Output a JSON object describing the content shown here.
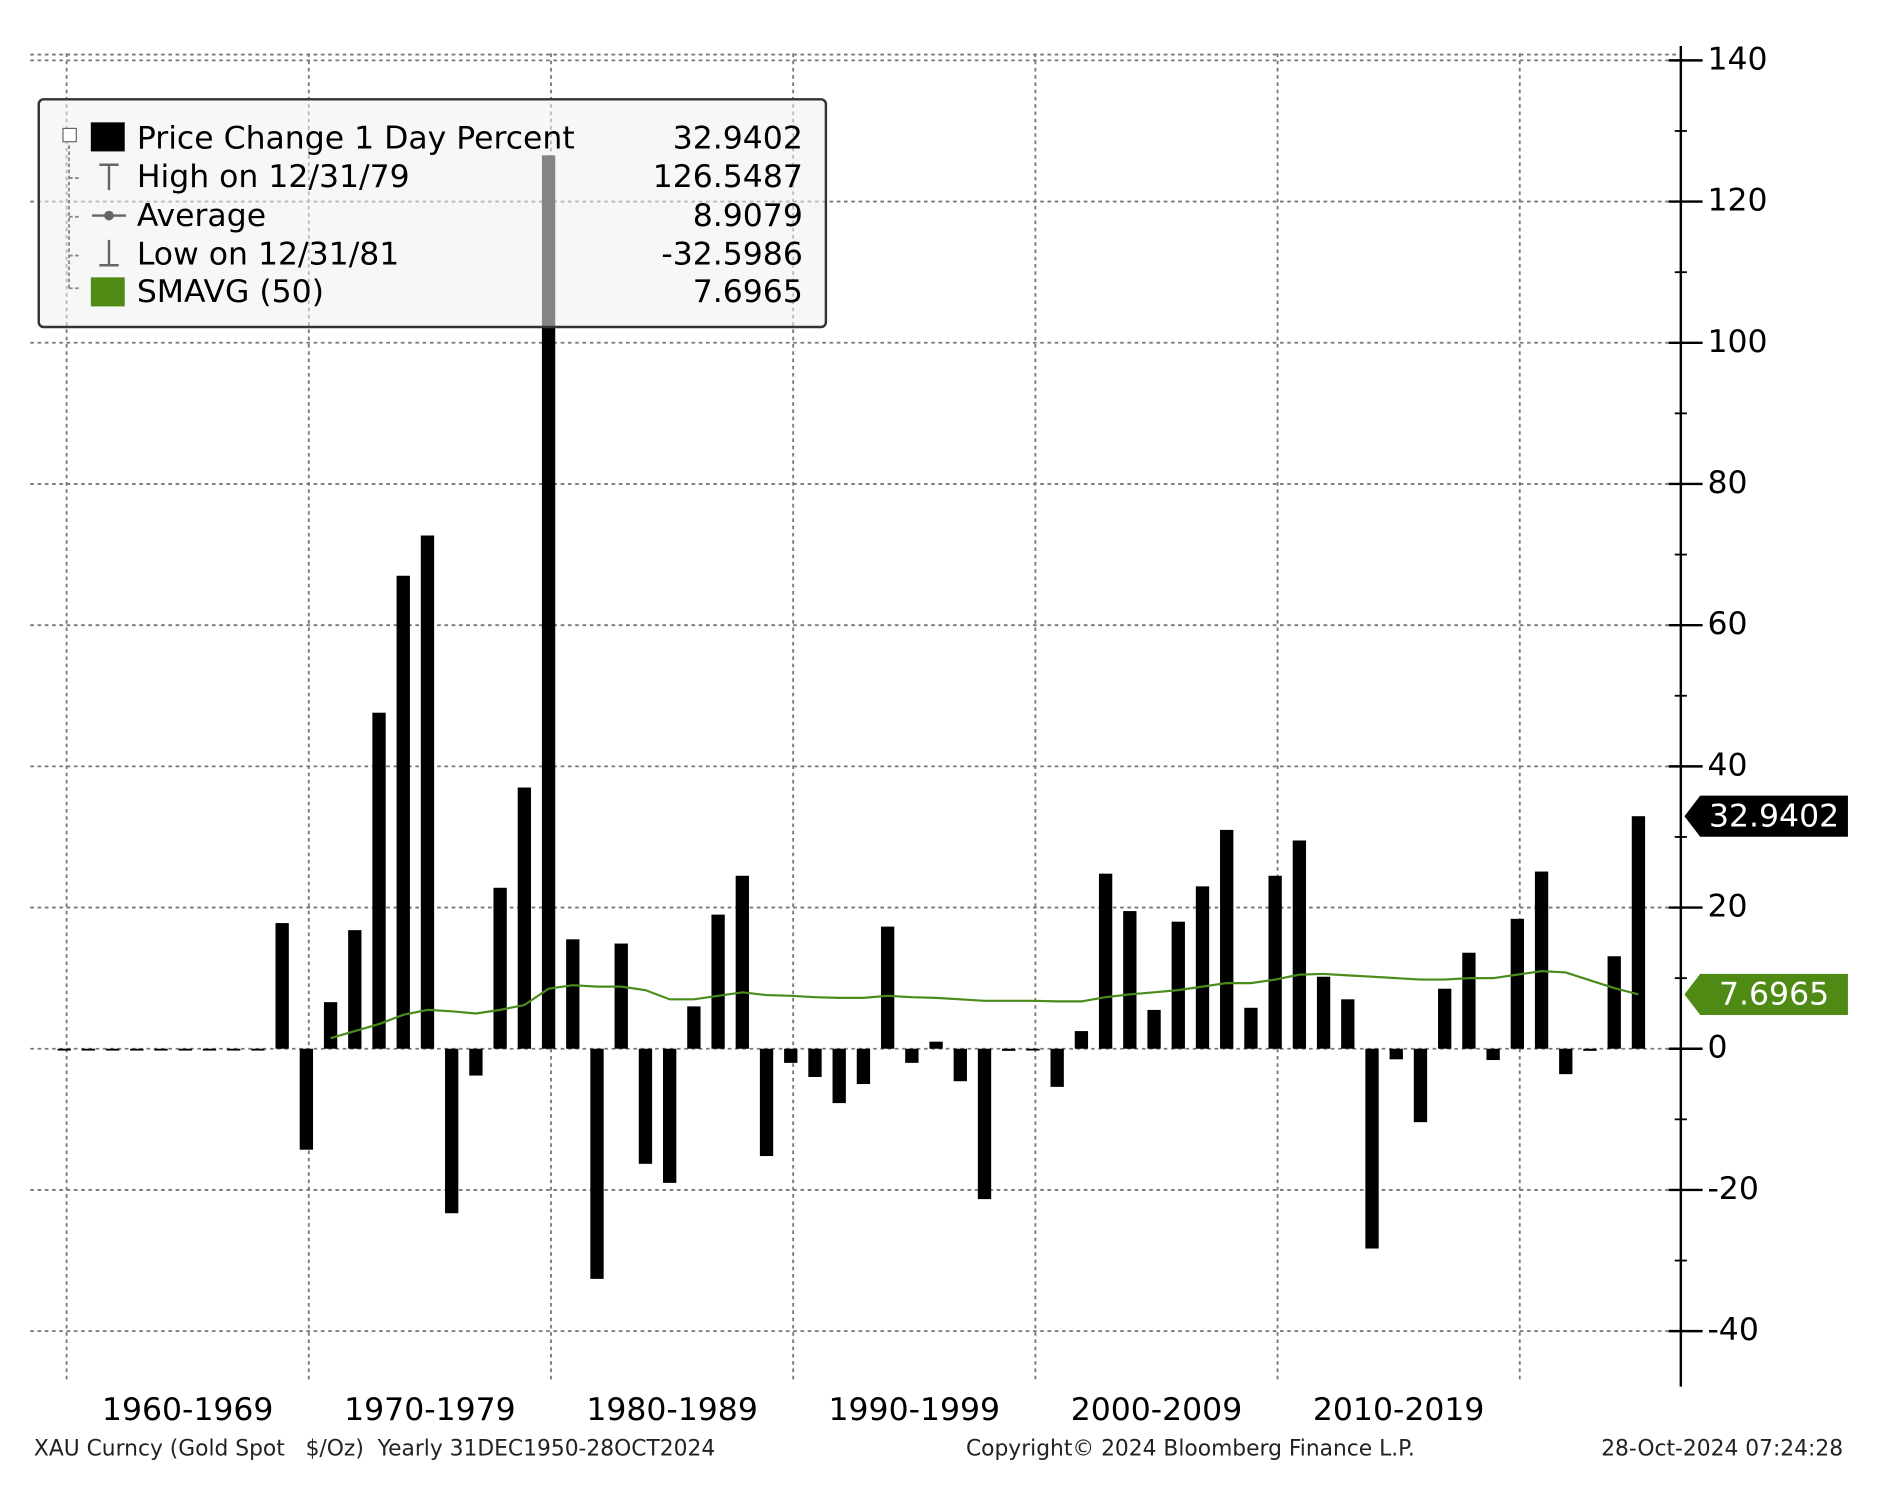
{
  "chart_data": {
    "type": "bar",
    "x": [
      1959,
      1960,
      1961,
      1962,
      1963,
      1964,
      1965,
      1966,
      1967,
      1968,
      1969,
      1970,
      1971,
      1972,
      1973,
      1974,
      1975,
      1976,
      1977,
      1978,
      1979,
      1980,
      1981,
      1982,
      1983,
      1984,
      1985,
      1986,
      1987,
      1988,
      1989,
      1990,
      1991,
      1992,
      1993,
      1994,
      1995,
      1996,
      1997,
      1998,
      1999,
      2000,
      2001,
      2002,
      2003,
      2004,
      2005,
      2006,
      2007,
      2008,
      2009,
      2010,
      2011,
      2012,
      2013,
      2014,
      2015,
      2016,
      2017,
      2018,
      2019,
      2020,
      2021,
      2022,
      2023,
      2024
    ],
    "series": [
      {
        "name": "Price Change 1 Day Percent",
        "color": "#000000",
        "values": [
          0,
          0,
          0,
          0,
          0,
          0,
          0,
          0,
          0,
          17.8,
          -14.3,
          6.6,
          16.8,
          47.6,
          67,
          72.7,
          -23.3,
          -3.8,
          22.8,
          37,
          126.5487,
          15.5,
          -32.5986,
          14.9,
          -16.3,
          -19,
          6,
          19,
          24.5,
          -15.2,
          -2,
          -4,
          -7.7,
          -5,
          17.3,
          -2,
          1,
          -4.6,
          -21.3,
          -0.3,
          0,
          -5.4,
          2.5,
          24.8,
          19.5,
          5.5,
          18,
          23,
          31,
          5.8,
          24.5,
          29.5,
          10.2,
          7,
          -28.3,
          -1.5,
          -10.4,
          8.5,
          13.6,
          -1.6,
          18.4,
          25.1,
          -3.6,
          -0.3,
          13.1,
          32.9402
        ]
      },
      {
        "name": "SMAVG (50)",
        "color": "#4a8c1c",
        "values": [
          null,
          null,
          null,
          null,
          null,
          null,
          null,
          null,
          null,
          null,
          null,
          1.5,
          2.5,
          3.5,
          4.8,
          5.5,
          5.3,
          5,
          5.5,
          6.2,
          8.5,
          9,
          8.8,
          8.8,
          8.3,
          7,
          7,
          7.5,
          8,
          7.6,
          7.5,
          7.3,
          7.2,
          7.2,
          7.5,
          7.3,
          7.2,
          7,
          6.8,
          6.8,
          6.8,
          6.7,
          6.7,
          7.3,
          7.7,
          8,
          8.3,
          8.8,
          9.3,
          9.3,
          9.8,
          10.5,
          10.6,
          10.4,
          10.2,
          10,
          9.8,
          9.8,
          10,
          10,
          10.5,
          11,
          10.8,
          9.7,
          8.6,
          7.6965
        ]
      }
    ],
    "stats": {
      "high_label": "High on 12/31/79",
      "average_label": "Average",
      "average": 8.9079,
      "low_label": "Low on 12/31/81"
    },
    "xlim": [
      1958.5,
      2026.65
    ],
    "xticks": [
      {
        "value": 1960,
        "label": "1960-1969"
      },
      {
        "value": 1970,
        "label": "1970-1979"
      },
      {
        "value": 1980,
        "label": "1980-1989"
      },
      {
        "value": 1990,
        "label": "1990-1999"
      },
      {
        "value": 2000,
        "label": "2000-2009"
      },
      {
        "value": 2010,
        "label": "2010-2019"
      },
      2020
    ],
    "ylim": [
      -47,
      141
    ],
    "yticks": [
      -40,
      -20,
      0,
      20,
      40,
      60,
      80,
      100,
      120,
      140
    ],
    "yticks_minor": [
      -30,
      -10,
      10,
      30,
      50,
      70,
      90,
      110,
      130
    ],
    "grid": true,
    "legend": "upper left",
    "footer": {
      "left": "XAU Curncy (Gold Spot   $/Oz)  Yearly 31DEC1950-28OCT2024",
      "center": "Copyright© 2024 Bloomberg Finance L.P.",
      "right": "28-Oct-2024 07:24:28"
    }
  }
}
